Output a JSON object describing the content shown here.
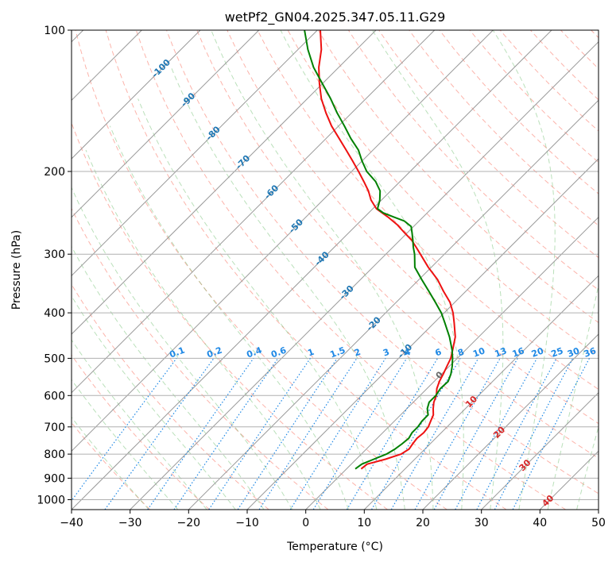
{
  "chart_data": {
    "type": "skew-t",
    "title": "wetPf2_GN04.2025.347.05.11.G29",
    "xlabel": "Temperature (°C)",
    "ylabel": "Pressure (hPa)",
    "xlim": [
      -40,
      50
    ],
    "ylim": [
      1050,
      100
    ],
    "x_ticks": [
      -40,
      -30,
      -20,
      -10,
      0,
      10,
      20,
      30,
      40,
      50
    ],
    "y_ticks": [
      100,
      200,
      300,
      400,
      500,
      600,
      700,
      800,
      900,
      1000
    ],
    "isotherm_labels": [
      -100,
      -90,
      -80,
      -70,
      -60,
      -50,
      -40,
      -30,
      -20,
      -10,
      0,
      10,
      20,
      30,
      40
    ],
    "mixing_ratio_labels": [
      "0.1",
      "0.2",
      "0.4",
      "0.6",
      "1",
      "1.5",
      "2",
      "3",
      "4",
      "6",
      "8",
      "10",
      "13",
      "16",
      "20",
      "25",
      "30",
      "36"
    ],
    "colors": {
      "temperature": "#ee1111",
      "dewpoint": "#008000",
      "isotherm": "#999999",
      "dry_adiabat": "#fa8072",
      "moist_adiabat": "#66bb66",
      "mixing_ratio": "#1e88e5",
      "isotherm_label": "#1f77b4",
      "isotherm_label_warm": "#d62728",
      "isotherm_label_zero": "#666666"
    },
    "series": [
      {
        "name": "Temperature",
        "points": [
          [
            860,
            2.5
          ],
          [
            840,
            2.7
          ],
          [
            820,
            5.0
          ],
          [
            800,
            6.8
          ],
          [
            780,
            7.3
          ],
          [
            760,
            7.0
          ],
          [
            740,
            6.8
          ],
          [
            720,
            7.0
          ],
          [
            700,
            6.8
          ],
          [
            680,
            6.2
          ],
          [
            660,
            5.6
          ],
          [
            640,
            4.5
          ],
          [
            620,
            3.5
          ],
          [
            600,
            2.8
          ],
          [
            580,
            1.7
          ],
          [
            560,
            0.9
          ],
          [
            540,
            0.3
          ],
          [
            520,
            -0.4
          ],
          [
            500,
            -1.1
          ],
          [
            480,
            -2.2
          ],
          [
            450,
            -4.0
          ],
          [
            420,
            -6.6
          ],
          [
            400,
            -8.5
          ],
          [
            380,
            -10.8
          ],
          [
            360,
            -13.8
          ],
          [
            340,
            -16.8
          ],
          [
            320,
            -20.5
          ],
          [
            300,
            -24.1
          ],
          [
            290,
            -26.0
          ],
          [
            280,
            -28.0
          ],
          [
            270,
            -30.5
          ],
          [
            260,
            -33.0
          ],
          [
            250,
            -36.0
          ],
          [
            240,
            -39.4
          ],
          [
            230,
            -41.8
          ],
          [
            220,
            -43.8
          ],
          [
            210,
            -46.2
          ],
          [
            200,
            -48.8
          ],
          [
            190,
            -51.6
          ],
          [
            180,
            -54.6
          ],
          [
            170,
            -57.8
          ],
          [
            160,
            -61.2
          ],
          [
            150,
            -64.4
          ],
          [
            140,
            -67.6
          ],
          [
            130,
            -70.5
          ],
          [
            120,
            -73.4
          ],
          [
            110,
            -76.0
          ],
          [
            100,
            -79.5
          ]
        ]
      },
      {
        "name": "Dewpoint",
        "points": [
          [
            860,
            1.5
          ],
          [
            840,
            1.8
          ],
          [
            820,
            3.0
          ],
          [
            800,
            4.3
          ],
          [
            780,
            4.9
          ],
          [
            760,
            5.2
          ],
          [
            740,
            5.4
          ],
          [
            720,
            5.0
          ],
          [
            700,
            5.0
          ],
          [
            680,
            4.7
          ],
          [
            660,
            4.7
          ],
          [
            640,
            3.5
          ],
          [
            620,
            2.7
          ],
          [
            600,
            2.7
          ],
          [
            580,
            2.3
          ],
          [
            560,
            2.4
          ],
          [
            540,
            1.6
          ],
          [
            520,
            0.5
          ],
          [
            500,
            -0.8
          ],
          [
            480,
            -2.3
          ],
          [
            450,
            -5.0
          ],
          [
            420,
            -8.2
          ],
          [
            400,
            -10.5
          ],
          [
            380,
            -13.3
          ],
          [
            360,
            -16.3
          ],
          [
            340,
            -19.5
          ],
          [
            320,
            -22.8
          ],
          [
            300,
            -25.1
          ],
          [
            290,
            -26.5
          ],
          [
            280,
            -27.8
          ],
          [
            270,
            -29.2
          ],
          [
            262,
            -30.4
          ],
          [
            255,
            -32.5
          ],
          [
            250,
            -35.0
          ],
          [
            245,
            -37.5
          ],
          [
            240,
            -39.2
          ],
          [
            230,
            -40.3
          ],
          [
            220,
            -41.8
          ],
          [
            210,
            -44.2
          ],
          [
            200,
            -47.4
          ],
          [
            190,
            -50.0
          ],
          [
            180,
            -52.5
          ],
          [
            170,
            -55.8
          ],
          [
            160,
            -59.0
          ],
          [
            150,
            -62.5
          ],
          [
            140,
            -66.0
          ],
          [
            130,
            -70.0
          ],
          [
            120,
            -74.3
          ],
          [
            110,
            -78.3
          ],
          [
            100,
            -82.2
          ]
        ]
      }
    ]
  }
}
